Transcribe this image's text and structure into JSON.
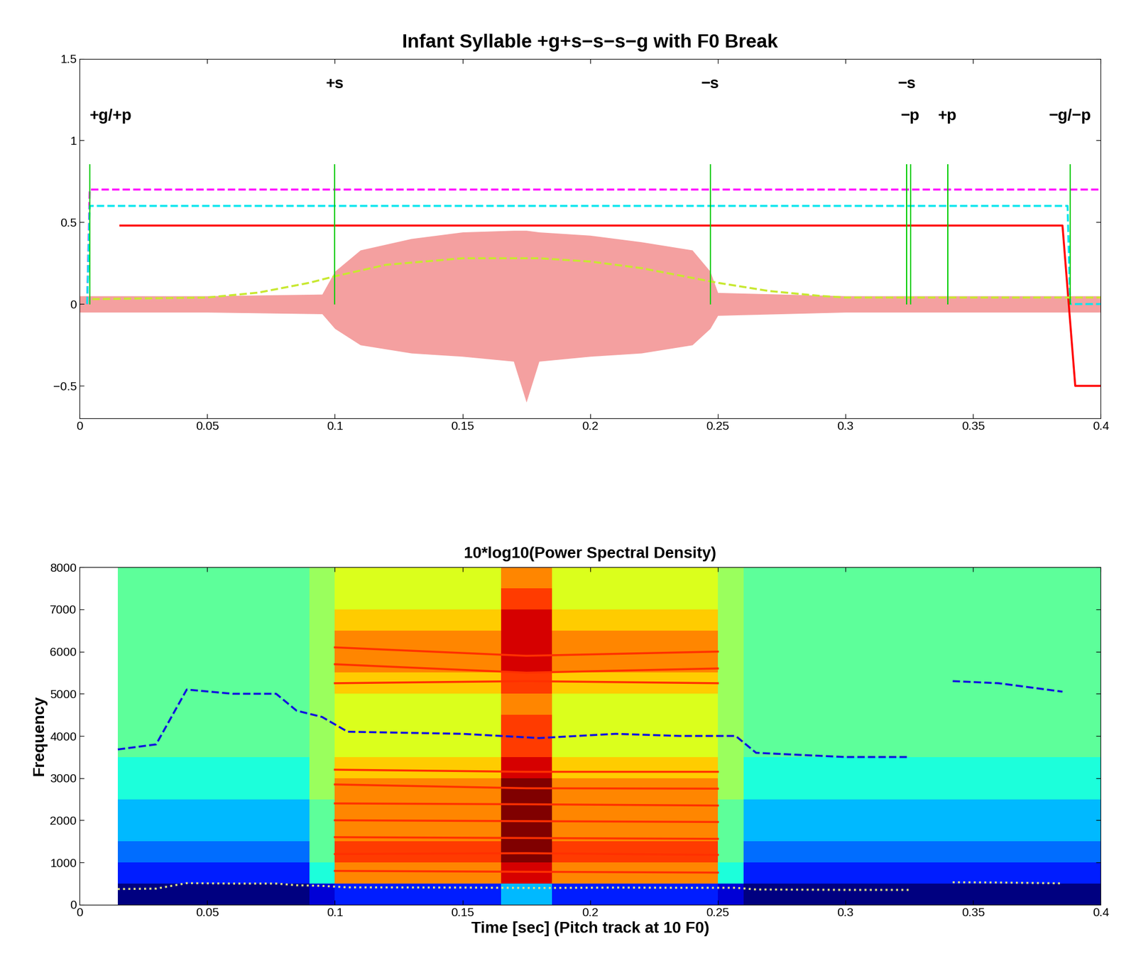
{
  "chart_data": [
    {
      "type": "line",
      "title": "Infant Syllable +g+s−s−s−g with F0 Break",
      "xlim": [
        0,
        0.4
      ],
      "ylim": [
        -0.7,
        1.5
      ],
      "xticks": [
        0,
        0.05,
        0.1,
        0.15,
        0.2,
        0.25,
        0.3,
        0.35,
        0.4
      ],
      "yticks": [
        {
          "value": -0.5,
          "label": "−0.5"
        },
        0,
        0.5,
        1,
        1.5
      ],
      "series": [
        {
          "type": "area",
          "color": "#f4a0a0",
          "x": [
            0.0,
            0.05,
            0.095,
            0.1,
            0.11,
            0.13,
            0.15,
            0.17,
            0.175,
            0.18,
            0.2,
            0.22,
            0.24,
            0.247,
            0.25,
            0.3,
            0.35,
            0.4
          ],
          "values": [
            0.05,
            0.05,
            0.06,
            0.2,
            0.33,
            0.4,
            0.44,
            0.45,
            0.45,
            0.44,
            0.42,
            0.38,
            0.33,
            0.2,
            0.07,
            0.05,
            0.05,
            0.05
          ],
          "lower": [
            -0.05,
            -0.05,
            -0.06,
            -0.15,
            -0.25,
            -0.3,
            -0.32,
            -0.35,
            -0.6,
            -0.35,
            -0.32,
            -0.3,
            -0.25,
            -0.15,
            -0.07,
            -0.05,
            -0.05,
            -0.05
          ]
        },
        {
          "type": "line",
          "color": "#ff00ff",
          "line_style": "dashed",
          "x": [
            0.003,
            0.004,
            0.4
          ],
          "values": [
            0,
            0.7,
            0.7
          ]
        },
        {
          "type": "line",
          "color": "#00e5ee",
          "line_style": "dashed",
          "x": [
            0.003,
            0.004,
            0.387,
            0.388,
            0.4
          ],
          "values": [
            0,
            0.6,
            0.6,
            0,
            0
          ]
        },
        {
          "type": "line",
          "color": "#ff0000",
          "line_style": "solid",
          "x": [
            0.016,
            0.385,
            0.39,
            0.4
          ],
          "values": [
            0.48,
            0.48,
            -0.5,
            -0.5
          ]
        },
        {
          "type": "line",
          "color": "#c8e830",
          "line_style": "dashed",
          "x": [
            0.005,
            0.05,
            0.07,
            0.09,
            0.1,
            0.12,
            0.15,
            0.18,
            0.2,
            0.22,
            0.24,
            0.25,
            0.27,
            0.29,
            0.3,
            0.35,
            0.4
          ],
          "values": [
            0.03,
            0.04,
            0.07,
            0.13,
            0.17,
            0.24,
            0.28,
            0.28,
            0.26,
            0.22,
            0.16,
            0.13,
            0.08,
            0.05,
            0.04,
            0.04,
            0.04
          ]
        }
      ],
      "annotations": [
        {
          "x": 0.004,
          "label": "+g/+p"
        },
        {
          "x": 0.1,
          "label": "+s"
        },
        {
          "x": 0.247,
          "label": "−s"
        },
        {
          "x": 0.324,
          "label": "−s"
        },
        {
          "x": 0.3255,
          "label": "−p"
        },
        {
          "x": 0.34,
          "label": "+p"
        },
        {
          "x": 0.388,
          "label": "−g/−p"
        }
      ]
    },
    {
      "type": "heatmap",
      "title": "10*log10(Power Spectral Density)",
      "x_label": "Time [sec] (Pitch track at 10 F0)",
      "y_label": "Frequency",
      "xlim": [
        0,
        0.4
      ],
      "ylim": [
        0,
        8000
      ],
      "xticks": [
        0,
        0.05,
        0.1,
        0.15,
        0.2,
        0.25,
        0.3,
        0.35,
        0.4
      ],
      "yticks": [
        0,
        1000,
        2000,
        3000,
        4000,
        5000,
        6000,
        7000,
        8000
      ],
      "time_edges": [
        0.015,
        0.04,
        0.065,
        0.09,
        0.1,
        0.125,
        0.15,
        0.165,
        0.185,
        0.2,
        0.225,
        0.25,
        0.26,
        0.3,
        0.33,
        0.35,
        0.4
      ],
      "freq_edges": [
        0,
        500,
        1000,
        1500,
        2000,
        2500,
        3000,
        3500,
        4000,
        4500,
        5000,
        5500,
        6000,
        6500,
        7000,
        7500,
        8000
      ],
      "cells": [
        [
          1,
          1,
          1,
          1.5,
          2,
          2,
          2,
          3,
          2,
          2,
          2,
          1.5,
          1,
          1,
          1,
          1
        ],
        [
          2,
          2,
          2,
          3.5,
          6,
          6,
          6,
          7,
          6,
          6,
          6,
          3.5,
          2,
          2,
          2,
          2
        ],
        [
          2.5,
          2.5,
          2.5,
          4,
          6.5,
          6.5,
          6.5,
          7.5,
          6.5,
          6.5,
          6.5,
          4,
          2.5,
          2.5,
          2.5,
          2.5
        ],
        [
          3,
          3,
          3,
          4,
          6,
          6,
          6,
          7.5,
          6,
          6,
          6,
          4,
          3,
          3,
          3,
          3
        ],
        [
          3,
          3,
          3,
          4,
          6,
          6,
          6,
          7.5,
          6,
          6,
          6,
          4,
          3,
          3,
          3,
          3
        ],
        [
          3.5,
          3.5,
          3.5,
          4.5,
          6,
          6,
          6,
          7.5,
          6,
          6,
          6,
          4.5,
          3.5,
          3.5,
          3.5,
          3.5
        ],
        [
          3.5,
          3.5,
          3.5,
          4.5,
          5.5,
          5.5,
          5.5,
          7,
          5.5,
          5.5,
          5.5,
          4.5,
          3.5,
          3.5,
          3.5,
          3.5
        ],
        [
          4,
          4,
          4,
          4.5,
          5,
          5,
          5,
          6.5,
          5,
          5,
          5,
          4.5,
          4,
          4,
          4,
          4
        ],
        [
          4,
          4,
          4,
          4.5,
          5,
          5,
          5,
          6.5,
          5,
          5,
          5,
          4.5,
          4,
          4,
          4,
          4
        ],
        [
          4,
          4,
          4,
          4.5,
          5,
          5,
          5,
          6,
          5,
          5,
          5,
          4.5,
          4,
          4,
          4,
          4
        ],
        [
          4,
          4,
          4,
          4.5,
          5.5,
          5.5,
          5.5,
          6.5,
          5.5,
          5.5,
          5.5,
          4.5,
          4,
          4,
          4,
          4
        ],
        [
          4,
          4,
          4,
          4.5,
          6,
          6,
          6,
          7,
          6,
          6,
          6,
          4.5,
          4,
          4,
          4,
          4
        ],
        [
          4,
          4,
          4,
          4.5,
          6,
          6,
          6,
          7,
          6,
          6,
          6,
          4.5,
          4,
          4,
          4,
          4
        ],
        [
          4,
          4,
          4,
          4.5,
          5.5,
          5.5,
          5.5,
          7,
          5.5,
          5.5,
          5.5,
          4.5,
          4,
          4,
          4,
          4
        ],
        [
          4,
          4,
          4,
          4.5,
          5,
          5,
          5,
          6.5,
          5,
          5,
          5,
          4.5,
          4,
          4,
          4,
          4
        ],
        [
          4,
          4,
          4,
          4.5,
          5,
          5,
          5,
          6,
          5,
          5,
          5,
          4.5,
          4,
          4,
          4,
          4
        ]
      ],
      "series": [
        {
          "type": "line",
          "color": "#ff3000",
          "line_style": "solid",
          "x": [
            0.1,
            0.175,
            0.25
          ],
          "values": [
            800,
            780,
            760
          ]
        },
        {
          "type": "line",
          "color": "#ff3000",
          "line_style": "solid",
          "x": [
            0.1,
            0.175,
            0.25
          ],
          "values": [
            1200,
            1220,
            1180
          ]
        },
        {
          "type": "line",
          "color": "#ff3000",
          "line_style": "solid",
          "x": [
            0.1,
            0.175,
            0.25
          ],
          "values": [
            1600,
            1580,
            1560
          ]
        },
        {
          "type": "line",
          "color": "#ff3000",
          "line_style": "solid",
          "x": [
            0.1,
            0.175,
            0.25
          ],
          "values": [
            2000,
            1980,
            1960
          ]
        },
        {
          "type": "line",
          "color": "#ff3000",
          "line_style": "solid",
          "x": [
            0.1,
            0.175,
            0.25
          ],
          "values": [
            2400,
            2380,
            2350
          ]
        },
        {
          "type": "line",
          "color": "#ff3000",
          "line_style": "solid",
          "x": [
            0.1,
            0.175,
            0.25
          ],
          "values": [
            2850,
            2760,
            2750
          ]
        },
        {
          "type": "line",
          "color": "#ff3000",
          "line_style": "solid",
          "x": [
            0.1,
            0.175,
            0.25
          ],
          "values": [
            3200,
            3150,
            3150
          ]
        },
        {
          "type": "line",
          "color": "#ff3000",
          "line_style": "solid",
          "x": [
            0.1,
            0.175,
            0.25
          ],
          "values": [
            5250,
            5300,
            5250
          ]
        },
        {
          "type": "line",
          "color": "#ff3000",
          "line_style": "solid",
          "x": [
            0.1,
            0.175,
            0.25
          ],
          "values": [
            5700,
            5500,
            5600
          ]
        },
        {
          "type": "line",
          "color": "#ff3000",
          "line_style": "solid",
          "x": [
            0.1,
            0.175,
            0.25
          ],
          "values": [
            6100,
            5900,
            6000
          ]
        },
        {
          "type": "line",
          "color": "#1010e0",
          "line_style": "dashed",
          "x": [
            0.015,
            0.03,
            0.042,
            0.06,
            0.077,
            0.085,
            0.095,
            0.105,
            0.15,
            0.18,
            0.21,
            0.235,
            0.257,
            0.265,
            0.3,
            0.325,
            null,
            0.342,
            0.36,
            0.385
          ],
          "values": [
            3680,
            3800,
            5100,
            5000,
            5000,
            4600,
            4450,
            4100,
            4050,
            3950,
            4050,
            4000,
            4000,
            3600,
            3500,
            3500,
            null,
            5300,
            5250,
            5050
          ]
        },
        {
          "type": "line",
          "color": "#e0e080",
          "line_style": "dotted",
          "x": [
            0.015,
            0.03,
            0.042,
            0.06,
            0.077,
            0.085,
            0.095,
            0.105,
            0.15,
            0.18,
            0.21,
            0.235,
            0.257,
            0.265,
            0.3,
            0.325,
            null,
            0.342,
            0.36,
            0.385
          ],
          "values": [
            370,
            380,
            510,
            500,
            500,
            460,
            445,
            410,
            405,
            395,
            405,
            400,
            400,
            360,
            350,
            350,
            null,
            530,
            525,
            505
          ]
        }
      ]
    }
  ]
}
